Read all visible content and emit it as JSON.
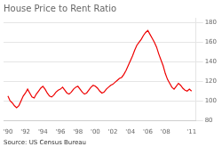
{
  "chart_data": {
    "type": "line",
    "title": "House Price to Rent Ratio",
    "annotations": [
      "Source: US Census Bureau"
    ],
    "color": "#ee0000",
    "x": [
      1990.0,
      1990.25,
      1990.5,
      1990.75,
      1991.0,
      1991.25,
      1991.5,
      1991.75,
      1992.0,
      1992.25,
      1992.5,
      1992.75,
      1993.0,
      1993.25,
      1993.5,
      1993.75,
      1994.0,
      1994.25,
      1994.5,
      1994.75,
      1995.0,
      1995.25,
      1995.5,
      1995.75,
      1996.0,
      1996.25,
      1996.5,
      1996.75,
      1997.0,
      1997.25,
      1997.5,
      1997.75,
      1998.0,
      1998.25,
      1998.5,
      1998.75,
      1999.0,
      1999.25,
      1999.5,
      1999.75,
      2000.0,
      2000.25,
      2000.5,
      2000.75,
      2001.0,
      2001.25,
      2001.5,
      2001.75,
      2002.0,
      2002.25,
      2002.5,
      2002.75,
      2003.0,
      2003.25,
      2003.5,
      2003.75,
      2004.0,
      2004.25,
      2004.5,
      2004.75,
      2005.0,
      2005.25,
      2005.5,
      2005.75,
      2006.0,
      2006.25,
      2006.5,
      2006.75,
      2007.0,
      2007.25,
      2007.5,
      2007.75,
      2008.0,
      2008.25,
      2008.5,
      2008.75,
      2009.0,
      2009.25,
      2009.5,
      2009.75,
      2010.0,
      2010.25,
      2010.5,
      2010.75,
      2011.0
    ],
    "values": [
      105,
      100,
      98,
      95,
      93,
      95,
      100,
      105,
      108,
      112,
      108,
      104,
      103,
      107,
      110,
      113,
      115,
      112,
      108,
      105,
      104,
      106,
      109,
      111,
      112,
      114,
      111,
      108,
      107,
      109,
      112,
      114,
      115,
      112,
      109,
      107,
      108,
      111,
      114,
      116,
      115,
      113,
      110,
      108,
      109,
      112,
      114,
      116,
      117,
      119,
      121,
      123,
      124,
      127,
      131,
      136,
      141,
      146,
      152,
      157,
      160,
      163,
      167,
      170,
      172,
      168,
      164,
      160,
      155,
      148,
      142,
      136,
      128,
      122,
      118,
      114,
      112,
      115,
      118,
      116,
      113,
      111,
      110,
      112,
      110
    ],
    "xlim": [
      1989.5,
      2011.5
    ],
    "xticks": [
      {
        "value": 1990,
        "label": "'90"
      },
      {
        "value": 1992,
        "label": "'92"
      },
      {
        "value": 1994,
        "label": "'94"
      },
      {
        "value": 1996,
        "label": "'96"
      },
      {
        "value": 1998,
        "label": "'98"
      },
      {
        "value": 2000,
        "label": "'00"
      },
      {
        "value": 2002,
        "label": "'02"
      },
      {
        "value": 2004,
        "label": "'04"
      },
      {
        "value": 2006,
        "label": "'06"
      },
      {
        "value": 2008,
        "label": "'08"
      },
      {
        "value": 2011,
        "label": "'11"
      }
    ],
    "ylim": [
      80,
      185
    ],
    "yticks": [
      80,
      100,
      120,
      140,
      160,
      180
    ],
    "grid": true
  }
}
